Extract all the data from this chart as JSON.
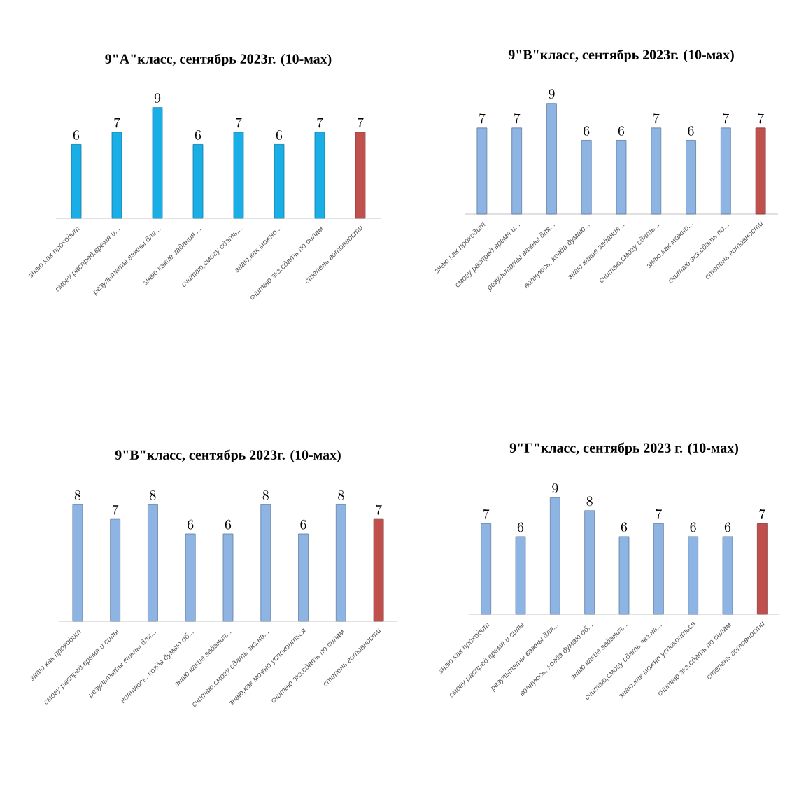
{
  "chart_data": [
    {
      "type": "bar",
      "title": "9\"А\"класс, сентябрь 2023г. (10-мах)",
      "categories": [
        "знаю как проходит",
        "смогу распред.время и...",
        "результаты важны для...",
        "знаю какие задания ...",
        "считаю,смогу сдать...",
        "знаю,как можно...",
        "считаю экз.сдать по силам",
        "степень готовности"
      ],
      "values": [
        6,
        7,
        9,
        6,
        7,
        6,
        7,
        7
      ],
      "colors": [
        "#1aaee6",
        "#1aaee6",
        "#1aaee6",
        "#1aaee6",
        "#1aaee6",
        "#1aaee6",
        "#1aaee6",
        "#c0504d"
      ],
      "data_labels": true
    },
    {
      "type": "bar",
      "title": "9\"В\"класс, сентябрь 2023г. (10-мах)",
      "categories": [
        "знаю как проходит",
        "смогу распред.время и...",
        "результаты важны для...",
        "волнуюсь, когда думаю...",
        "знаю какие задания...",
        "считаю,смогу сдать...",
        "знаю,как можно...",
        "считаю экз.сдать по...",
        "степень готовности"
      ],
      "values": [
        7,
        7,
        9,
        6,
        6,
        7,
        6,
        7,
        7
      ],
      "colors": [
        "#8db4e2",
        "#8db4e2",
        "#8db4e2",
        "#8db4e2",
        "#8db4e2",
        "#8db4e2",
        "#8db4e2",
        "#8db4e2",
        "#c0504d"
      ],
      "data_labels": true
    },
    {
      "type": "bar",
      "title": "9\"В\"класс, сентябрь 2023г. (10-мах)",
      "categories": [
        "знаю как проходит",
        "смогу распред.время и силы",
        "результаты важны для...",
        "волнуюсь, когда думаю об...",
        "знаю какие задания...",
        "считаю,смогу сдать экз.на...",
        "знаю,как можно успокоиться",
        "считаю экз.сдать по силам",
        "степень готовности"
      ],
      "values": [
        8,
        7,
        8,
        6,
        6,
        8,
        6,
        8,
        7
      ],
      "colors": [
        "#8db4e2",
        "#8db4e2",
        "#8db4e2",
        "#8db4e2",
        "#8db4e2",
        "#8db4e2",
        "#8db4e2",
        "#8db4e2",
        "#c0504d"
      ],
      "data_labels": true
    },
    {
      "type": "bar",
      "title": "9\"Г\"класс, сентябрь 2023 г. (10-мах)",
      "categories": [
        "знаю как проходит",
        "смогу распред.время и силы",
        "результаты важны для...",
        "волнуюсь, когда думаю об...",
        "знаю какие задания...",
        "считаю,смогу сдать экз.на...",
        "знаю,как можно успокоиться",
        "считаю экз.сдать по силам",
        "степень готовности"
      ],
      "values": [
        7,
        6,
        9,
        8,
        6,
        7,
        6,
        6,
        7
      ],
      "colors": [
        "#8db4e2",
        "#8db4e2",
        "#8db4e2",
        "#8db4e2",
        "#8db4e2",
        "#8db4e2",
        "#8db4e2",
        "#8db4e2",
        "#c0504d"
      ],
      "data_labels": true
    }
  ]
}
